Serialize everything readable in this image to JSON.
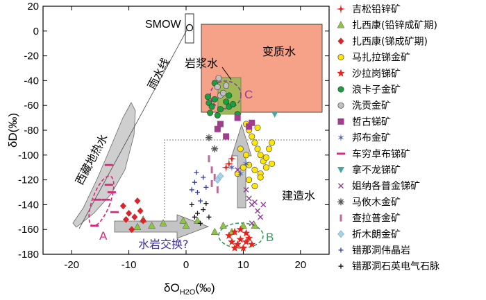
{
  "chart_data": {
    "type": "scatter",
    "xlabel": "δO",
    "xlabel_sub": "H2O",
    "xlabel_unit": "(‰)",
    "ylabel": "δD(‰)",
    "xlim": [
      -25,
      25
    ],
    "ylim": [
      -180,
      20
    ],
    "xticks": [
      -20,
      -10,
      0,
      10,
      20
    ],
    "yticks": [
      20,
      0,
      -20,
      -40,
      -60,
      -80,
      -100,
      -120,
      -140,
      -160,
      -180
    ],
    "annotations": {
      "smow": "SMOW",
      "meteoric_line": "雨水线",
      "magmatic": "岩浆水",
      "metamorphic": "变质水",
      "formation": "建造水",
      "geothermal": "西藏地热水",
      "exchange": "水岩交换?",
      "a": "A",
      "b": "B",
      "c": "C"
    },
    "series": [
      {
        "name": "吉松铅锌矿",
        "marker": "star4",
        "color": "#e8231c",
        "points": [
          [
            7.5,
            -107
          ],
          [
            8,
            -103
          ],
          [
            7,
            -110
          ]
        ]
      },
      {
        "name": "扎西康(铅锌成矿期)",
        "marker": "triangle",
        "color": "#8cc63f",
        "points": [
          [
            -8.5,
            -158
          ],
          [
            -7.5,
            -152
          ],
          [
            -6,
            -157
          ],
          [
            -4,
            -155
          ],
          [
            -0.5,
            -153
          ],
          [
            0,
            -157
          ],
          [
            2,
            -153
          ],
          [
            5,
            -162
          ],
          [
            6.5,
            -157
          ],
          [
            8,
            -162
          ],
          [
            10,
            -157
          ],
          [
            12,
            -157
          ]
        ]
      },
      {
        "name": "扎西康(锑成矿期)",
        "marker": "diamond",
        "color": "#d7262b",
        "points": [
          [
            -11,
            -141
          ],
          [
            -10,
            -147
          ],
          [
            -9,
            -150
          ],
          [
            -8.5,
            -137
          ],
          [
            -8,
            -145
          ],
          [
            -7.5,
            -153
          ],
          [
            -10.5,
            -152
          ],
          [
            -9.5,
            -160
          ]
        ]
      },
      {
        "name": "马扎拉锑金矿",
        "marker": "circle",
        "color": "#ffe600",
        "points": [
          [
            10.5,
            -75
          ],
          [
            11,
            -80
          ],
          [
            11.5,
            -85
          ],
          [
            12,
            -90
          ],
          [
            12.5,
            -95
          ],
          [
            13,
            -100
          ],
          [
            13.5,
            -105
          ],
          [
            11,
            -108
          ],
          [
            12,
            -112
          ],
          [
            13,
            -115
          ],
          [
            14,
            -110
          ],
          [
            14.5,
            -95
          ],
          [
            15,
            -90
          ],
          [
            12.5,
            -78
          ],
          [
            9.5,
            -95
          ],
          [
            10,
            -110
          ],
          [
            11,
            -120
          ],
          [
            12,
            -125
          ],
          [
            13,
            -118
          ],
          [
            14,
            -102
          ],
          [
            15,
            -107
          ],
          [
            10.5,
            -100
          ],
          [
            9,
            -115
          ]
        ]
      },
      {
        "name": "沙拉岗锑矿",
        "marker": "star5",
        "color": "#e8231c",
        "points": [
          [
            7.5,
            -165
          ],
          [
            8,
            -170
          ],
          [
            8.5,
            -162
          ],
          [
            9,
            -172
          ],
          [
            9.5,
            -168
          ],
          [
            10,
            -175
          ],
          [
            10.5,
            -170
          ],
          [
            11,
            -167
          ],
          [
            8.5,
            -175
          ],
          [
            11.5,
            -172
          ],
          [
            9.5,
            -160
          ],
          [
            10.5,
            -163
          ]
        ]
      },
      {
        "name": "浪卡子金矿",
        "marker": "circle",
        "color": "#1b9e3e",
        "points": [
          [
            4,
            -58
          ],
          [
            4.5,
            -61
          ],
          [
            5,
            -55
          ],
          [
            6,
            -63
          ],
          [
            7,
            -57
          ],
          [
            7.5,
            -61
          ],
          [
            4.2,
            -66
          ],
          [
            9,
            -67
          ],
          [
            5.5,
            -68
          ],
          [
            7.5,
            -52
          ],
          [
            3.8,
            -53
          ],
          [
            8.2,
            -59
          ],
          [
            5,
            -42
          ]
        ]
      },
      {
        "name": "洗贡金矿",
        "marker": "circle",
        "color": "#bfbfbf",
        "points": [
          [
            5.5,
            -45
          ],
          [
            6,
            -52
          ],
          [
            6.5,
            -50
          ],
          [
            7,
            -44
          ],
          [
            5.7,
            -38
          ]
        ]
      },
      {
        "name": "哲古锑矿",
        "marker": "square",
        "color": "#a23c8c",
        "points": [
          [
            6,
            -75
          ],
          [
            9,
            -70
          ],
          [
            11,
            -77
          ],
          [
            11.5,
            -74
          ],
          [
            7,
            -85
          ],
          [
            5.5,
            -79
          ]
        ]
      },
      {
        "name": "邦布金矿",
        "marker": "star6",
        "color": "#4a5fc0",
        "points": [
          [
            8,
            -110
          ],
          [
            9.5,
            -115
          ],
          [
            10.5,
            -107
          ]
        ]
      },
      {
        "name": "车穷卓布锑矿",
        "marker": "dash",
        "color": "#d9277a",
        "points": [
          [
            -13.5,
            -108
          ],
          [
            -13,
            -130
          ],
          [
            -14,
            -136
          ],
          [
            -15.5,
            -136
          ],
          [
            -13.5,
            -124
          ],
          [
            -16,
            -157
          ],
          [
            -12.5,
            -146
          ]
        ]
      },
      {
        "name": "拿不龙锑矿",
        "marker": "invtriangle",
        "color": "#4aa6a0",
        "points": [
          [
            15.5,
            -67
          ]
        ]
      },
      {
        "name": "姐纳各普金锑矿",
        "marker": "x",
        "color": "#8e3d96",
        "points": [
          [
            11,
            -135
          ],
          [
            11.5,
            -140
          ],
          [
            12,
            -138
          ],
          [
            12.5,
            -145
          ],
          [
            13,
            -150
          ],
          [
            10.5,
            -128
          ],
          [
            9,
            -112
          ],
          [
            13.5,
            -140
          ],
          [
            11.5,
            -155
          ]
        ]
      },
      {
        "name": "马攸木金矿",
        "marker": "asterisk",
        "color": "#555555",
        "points": [
          [
            4,
            -86
          ],
          [
            5,
            -95
          ]
        ]
      },
      {
        "name": "查拉普金矿",
        "marker": "bar",
        "color": "#bb6b98",
        "points": [
          [
            4,
            -103
          ],
          [
            4.5,
            -112
          ],
          [
            5,
            -118
          ],
          [
            4.5,
            -123
          ],
          [
            5.5,
            -128
          ]
        ]
      },
      {
        "name": "折木朗金矿",
        "marker": "diamond",
        "color": "#a7d3e8",
        "points": [
          [
            5.5,
            -120
          ],
          [
            6,
            -117
          ]
        ]
      },
      {
        "name": "错那洞伟晶岩",
        "marker": "plus",
        "color": "#333c9c",
        "points": [
          [
            1,
            -128
          ],
          [
            1.5,
            -122
          ],
          [
            2,
            -130
          ],
          [
            2.5,
            -137
          ],
          [
            1.8,
            -114
          ],
          [
            3,
            -118
          ],
          [
            3.5,
            -126
          ]
        ]
      },
      {
        "name": "错那洞石英电气石脉",
        "marker": "plus",
        "color": "#111111",
        "points": [
          [
            1,
            -140
          ],
          [
            2,
            -147
          ],
          [
            3,
            -144
          ],
          [
            4,
            -150
          ],
          [
            3.5,
            -139
          ],
          [
            2.5,
            -155
          ],
          [
            1.5,
            -150
          ]
        ]
      }
    ]
  }
}
